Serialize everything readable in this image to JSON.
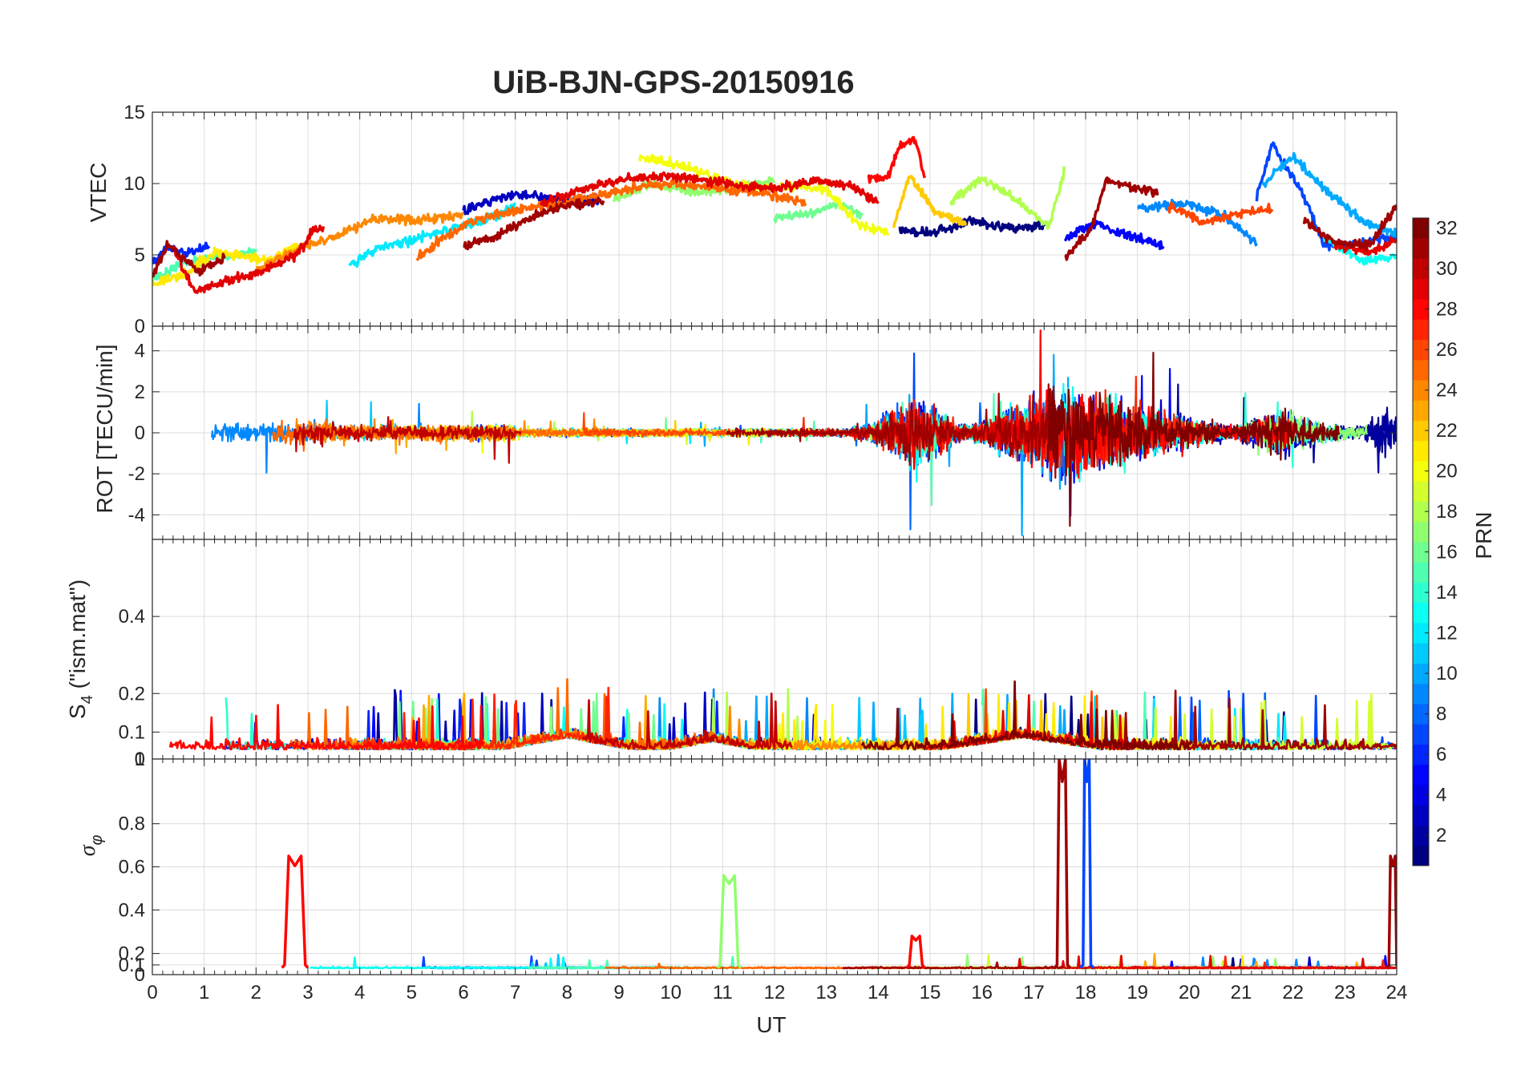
{
  "chart_data": {
    "title": "UiB-BJN-GPS-20150916",
    "type": "line",
    "xlabel": "UT",
    "xlim": [
      0,
      24
    ],
    "x_ticks": [
      "0",
      "1",
      "2",
      "3",
      "4",
      "5",
      "6",
      "7",
      "8",
      "9",
      "10",
      "11",
      "12",
      "13",
      "14",
      "15",
      "16",
      "17",
      "18",
      "19",
      "20",
      "21",
      "22",
      "23",
      "24"
    ],
    "grid": true,
    "colormap": "jet",
    "colorbar": {
      "label": "PRN",
      "range": [
        1,
        32
      ],
      "ticks": [
        "2",
        "4",
        "6",
        "8",
        "10",
        "12",
        "14",
        "16",
        "18",
        "20",
        "22",
        "24",
        "26",
        "28",
        "30",
        "32"
      ],
      "placement": "right"
    },
    "panels": [
      {
        "ylabel": "VTEC",
        "ylim": [
          0,
          15
        ],
        "y_ticks": [
          "0",
          "5",
          "10",
          "15"
        ],
        "series": [
          {
            "prn": 1,
            "points": [
              [
                14.4,
                6.8
              ],
              [
                15.0,
                6.5
              ],
              [
                15.8,
                7.4
              ],
              [
                16.5,
                6.9
              ],
              [
                17.2,
                7.0
              ]
            ]
          },
          {
            "prn": 3,
            "points": [
              [
                6.0,
                8.1
              ],
              [
                6.6,
                8.9
              ],
              [
                7.2,
                9.2
              ],
              [
                7.8,
                8.9
              ],
              [
                8.6,
                8.8
              ]
            ]
          },
          {
            "prn": 5,
            "points": [
              [
                17.6,
                6.2
              ],
              [
                18.2,
                7.2
              ],
              [
                18.8,
                6.4
              ],
              [
                19.5,
                5.6
              ]
            ]
          },
          {
            "prn": 6,
            "points": [
              [
                0.0,
                4.4
              ],
              [
                0.3,
                5.5
              ],
              [
                0.7,
                5.2
              ],
              [
                1.1,
                5.6
              ]
            ]
          },
          {
            "prn": 7,
            "points": [
              [
                21.3,
                9.0
              ],
              [
                21.6,
                12.8
              ],
              [
                22.2,
                9.2
              ],
              [
                22.6,
                5.6
              ],
              [
                23.2,
                5.8
              ],
              [
                24.0,
                6.2
              ]
            ]
          },
          {
            "prn": 9,
            "points": [
              [
                19.0,
                8.2
              ],
              [
                20.0,
                8.6
              ],
              [
                20.7,
                7.7
              ],
              [
                21.3,
                5.8
              ]
            ]
          },
          {
            "prn": 10,
            "points": [
              [
                21.4,
                9.8
              ],
              [
                22.0,
                11.9
              ],
              [
                22.5,
                10.0
              ],
              [
                23.4,
                7.2
              ],
              [
                24.0,
                6.5
              ]
            ]
          },
          {
            "prn": 12,
            "points": [
              [
                3.8,
                4.2
              ],
              [
                4.4,
                5.6
              ],
              [
                5.0,
                6.0
              ],
              [
                5.7,
                6.8
              ],
              [
                6.4,
                7.3
              ],
              [
                7.0,
                8.5
              ]
            ]
          },
          {
            "prn": 13,
            "points": [
              [
                22.6,
                6.2
              ],
              [
                23.3,
                4.6
              ],
              [
                24.0,
                4.9
              ]
            ]
          },
          {
            "prn": 15,
            "points": [
              [
                0.0,
                3.3
              ],
              [
                0.7,
                4.6
              ],
              [
                1.5,
                4.9
              ],
              [
                2.0,
                5.4
              ]
            ]
          },
          {
            "prn": 16,
            "points": [
              [
                12.0,
                7.6
              ],
              [
                12.7,
                7.9
              ],
              [
                13.2,
                8.6
              ],
              [
                13.7,
                7.8
              ]
            ]
          },
          {
            "prn": 17,
            "points": [
              [
                8.9,
                8.9
              ],
              [
                9.6,
                9.9
              ],
              [
                10.4,
                9.4
              ],
              [
                11.2,
                9.7
              ],
              [
                12.0,
                10.2
              ]
            ]
          },
          {
            "prn": 18,
            "points": [
              [
                15.4,
                8.8
              ],
              [
                16.0,
                10.3
              ],
              [
                16.6,
                9.0
              ],
              [
                17.3,
                7.0
              ],
              [
                17.6,
                11.0
              ]
            ]
          },
          {
            "prn": 20,
            "points": [
              [
                9.4,
                11.8
              ],
              [
                10.2,
                11.3
              ],
              [
                11.0,
                10.2
              ],
              [
                11.7,
                9.7
              ],
              [
                12.4,
                9.8
              ],
              [
                13.0,
                9.6
              ],
              [
                13.6,
                7.2
              ],
              [
                14.2,
                6.5
              ]
            ]
          },
          {
            "prn": 21,
            "points": [
              [
                0.0,
                3.0
              ],
              [
                0.6,
                3.6
              ],
              [
                1.2,
                5.2
              ],
              [
                1.7,
                5.0
              ],
              [
                2.3,
                4.6
              ],
              [
                2.8,
                5.8
              ]
            ]
          },
          {
            "prn": 22,
            "points": [
              [
                14.3,
                6.8
              ],
              [
                14.6,
                10.6
              ],
              [
                15.1,
                8.0
              ],
              [
                15.7,
                7.2
              ]
            ]
          },
          {
            "prn": 24,
            "points": [
              [
                2.0,
                4.0
              ],
              [
                2.8,
                5.4
              ],
              [
                3.5,
                6.2
              ],
              [
                4.3,
                7.6
              ],
              [
                5.2,
                7.4
              ],
              [
                6.0,
                7.8
              ]
            ]
          },
          {
            "prn": 25,
            "points": [
              [
                5.1,
                4.8
              ],
              [
                5.6,
                6.2
              ],
              [
                6.2,
                7.4
              ],
              [
                7.0,
                8.1
              ],
              [
                7.8,
                8.6
              ],
              [
                8.6,
                9.2
              ],
              [
                9.4,
                9.8
              ],
              [
                10.2,
                10.0
              ],
              [
                11.0,
                9.6
              ],
              [
                11.8,
                9.3
              ],
              [
                12.6,
                8.6
              ]
            ]
          },
          {
            "prn": 26,
            "points": [
              [
                19.6,
                8.4
              ],
              [
                20.3,
                7.3
              ],
              [
                21.0,
                7.9
              ],
              [
                21.6,
                8.2
              ]
            ]
          },
          {
            "prn": 28,
            "points": [
              [
                13.8,
                10.2
              ],
              [
                14.2,
                10.5
              ],
              [
                14.4,
                12.5
              ],
              [
                14.7,
                13.2
              ],
              [
                14.9,
                10.4
              ]
            ]
          },
          {
            "prn": 29,
            "points": [
              [
                0.4,
                5.5
              ],
              [
                0.8,
                2.5
              ],
              [
                1.3,
                3.0
              ],
              [
                2.0,
                3.7
              ],
              [
                2.8,
                5.0
              ],
              [
                3.1,
                6.8
              ],
              [
                3.3,
                7.0
              ]
            ]
          },
          {
            "prn": 29,
            "points": [
              [
                7.5,
                8.6
              ],
              [
                8.3,
                9.6
              ],
              [
                9.1,
                10.3
              ],
              [
                9.9,
                10.6
              ],
              [
                10.7,
                10.2
              ],
              [
                11.4,
                9.8
              ],
              [
                12.2,
                9.7
              ],
              [
                12.8,
                10.2
              ],
              [
                13.5,
                9.8
              ],
              [
                14.0,
                8.6
              ]
            ]
          },
          {
            "prn": 29,
            "points": [
              [
                22.8,
                5.6
              ],
              [
                23.5,
                5.3
              ],
              [
                24.0,
                6.0
              ]
            ]
          },
          {
            "prn": 31,
            "points": [
              [
                0.0,
                3.5
              ],
              [
                0.3,
                5.8
              ],
              [
                0.9,
                3.8
              ],
              [
                1.4,
                4.9
              ]
            ]
          },
          {
            "prn": 31,
            "points": [
              [
                6.0,
                5.6
              ],
              [
                6.6,
                6.3
              ],
              [
                7.3,
                7.6
              ],
              [
                8.0,
                8.5
              ],
              [
                8.7,
                8.8
              ]
            ]
          },
          {
            "prn": 31,
            "points": [
              [
                17.6,
                4.8
              ],
              [
                18.1,
                6.8
              ],
              [
                18.4,
                10.3
              ],
              [
                18.9,
                9.8
              ],
              [
                19.4,
                9.3
              ]
            ]
          },
          {
            "prn": 31,
            "points": [
              [
                22.2,
                7.4
              ],
              [
                22.8,
                5.8
              ],
              [
                23.5,
                5.7
              ],
              [
                24.0,
                8.5
              ]
            ]
          }
        ]
      },
      {
        "ylabel": "ROT [TECU/min]",
        "ylim": [
          -5.2,
          5.2
        ],
        "y_ticks": [
          "-4",
          "-2",
          "0",
          "2",
          "4"
        ]
      },
      {
        "ylabel": "S4 (\"ism.mat\")",
        "ylabel_main": "S",
        "ylabel_sub": "4",
        "ylabel_rest": " (\"ism.mat\")",
        "ylim": [
          0.03,
          0.6
        ],
        "y_ticks": [
          "0.1",
          "0.2",
          "0.4"
        ]
      },
      {
        "ylabel": "σφ",
        "ylabel_main": "σ",
        "ylabel_sub": "φ",
        "ylim": [
          0,
          1
        ],
        "y_ticks": [
          "0",
          "0.1",
          "0.2",
          "0.4",
          "0.6",
          "0.8"
        ],
        "top_tick_overlap": [
          "0",
          "1"
        ],
        "spikes": [
          {
            "prn": 28,
            "x": [
              2.55,
              2.95
            ],
            "peak": 0.65
          },
          {
            "prn": 17,
            "x": [
              10.95,
              11.3
            ],
            "peak": 0.56
          },
          {
            "prn": 28,
            "x": [
              14.6,
              14.85
            ],
            "peak": 0.28
          },
          {
            "prn": 31,
            "x": [
              17.45,
              17.65
            ],
            "peak": 1.0
          },
          {
            "prn": 7,
            "x": [
              17.95,
              18.1
            ],
            "peak": 1.0
          },
          {
            "prn": 31,
            "x": [
              23.85,
              24.0
            ],
            "peak": 0.65
          }
        ]
      }
    ]
  }
}
